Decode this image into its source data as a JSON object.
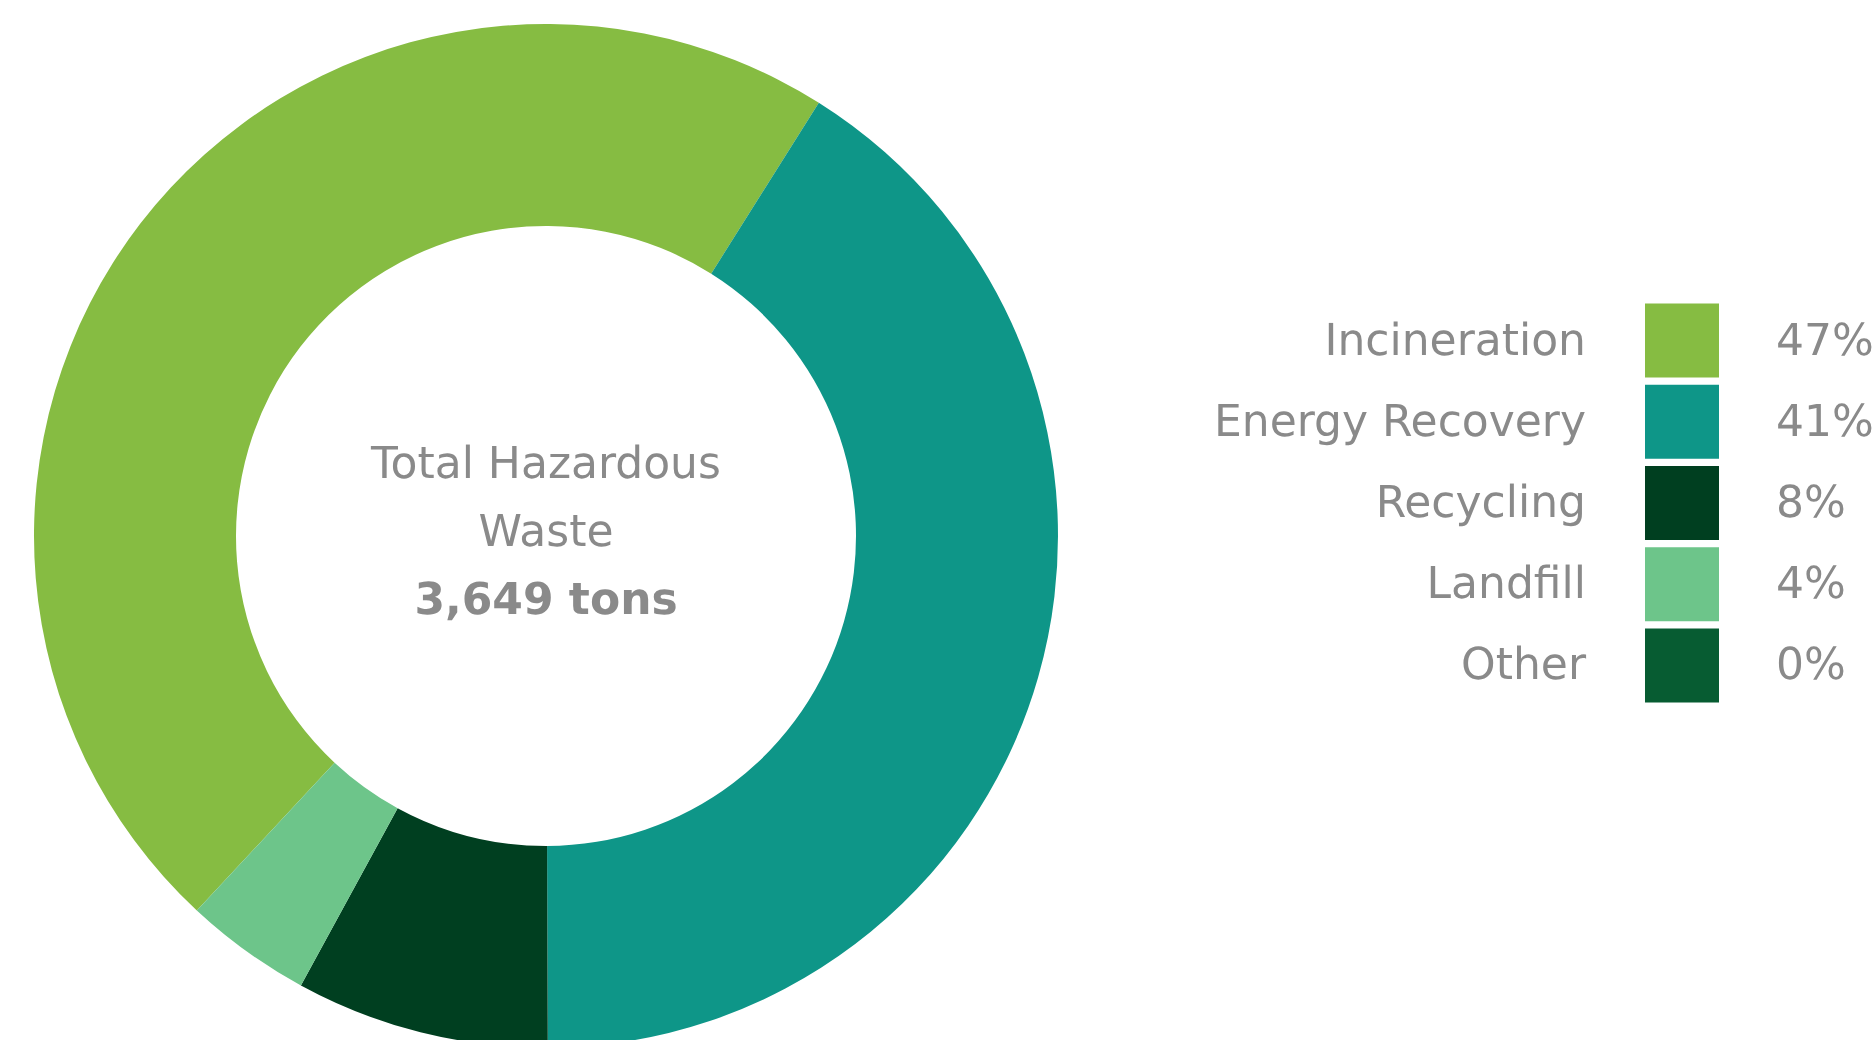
{
  "chart_data": {
    "type": "donut",
    "categories": [
      "Incineration",
      "Energy Recovery",
      "Recycling",
      "Landfill",
      "Other"
    ],
    "values": [
      47,
      41,
      8,
      4,
      0
    ],
    "colors": [
      "#86bc42",
      "#0e9688",
      "#003f20",
      "#6dc58a",
      "#075c32"
    ],
    "value_labels": [
      "47%",
      "41%",
      "8%",
      "4%",
      "0%"
    ],
    "annotations": [
      "Total Hazardous Waste",
      "3,649 tons"
    ],
    "legend": "right"
  }
}
